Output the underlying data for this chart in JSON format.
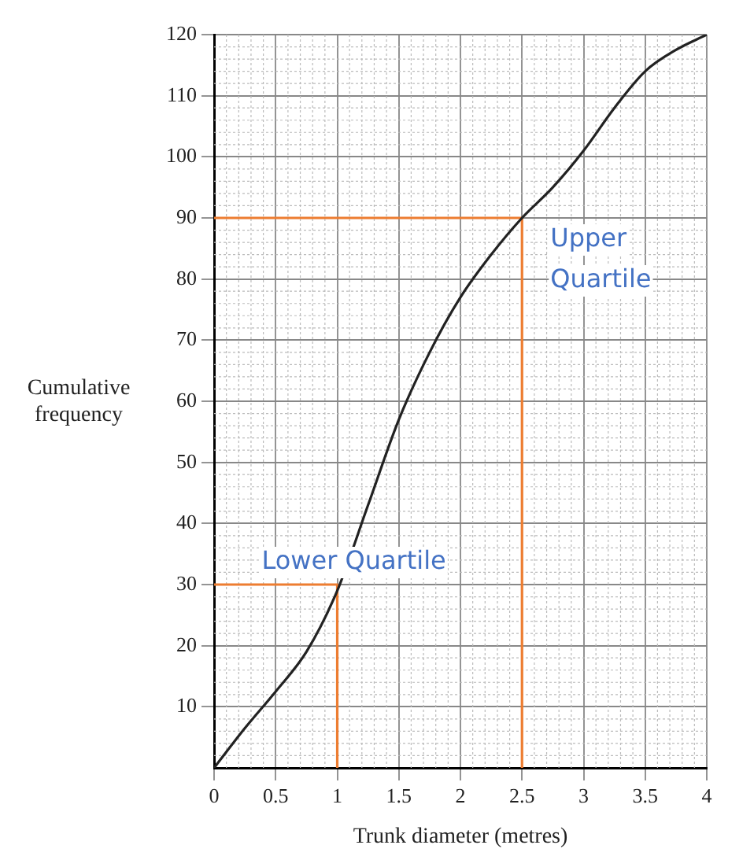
{
  "chart_data": {
    "type": "line",
    "xlabel": "Trunk diameter (metres)",
    "ylabel": "Cumulative frequency",
    "xlim": [
      0,
      4
    ],
    "ylim": [
      0,
      120
    ],
    "xticks": [
      0,
      0.5,
      1,
      1.5,
      2,
      2.5,
      3,
      3.5,
      4
    ],
    "yticks": [
      10,
      20,
      30,
      40,
      50,
      60,
      70,
      80,
      90,
      100,
      110,
      120
    ],
    "grid": true,
    "marker": "none",
    "line_style": "solid",
    "legend": false,
    "series": [
      {
        "color": "#222222",
        "x": [
          0,
          0.25,
          0.5,
          0.75,
          1,
          1.25,
          1.5,
          1.75,
          2,
          2.25,
          2.5,
          2.75,
          3,
          3.25,
          3.5,
          3.75,
          4
        ],
        "values": [
          0,
          6.5,
          12.5,
          19,
          29,
          43,
          57,
          68,
          77,
          84,
          90,
          95,
          101,
          108,
          114,
          117.5,
          120
        ]
      },
      {
        "color": "#ed7d31",
        "x": [
          0,
          1,
          1
        ],
        "values": [
          30,
          30,
          0
        ]
      },
      {
        "color": "#ed7d31",
        "x": [
          0,
          2.5,
          2.5
        ],
        "values": [
          90,
          90,
          0
        ]
      }
    ],
    "annotations": [
      "Lower Quartile",
      "Upper Quartile"
    ]
  }
}
